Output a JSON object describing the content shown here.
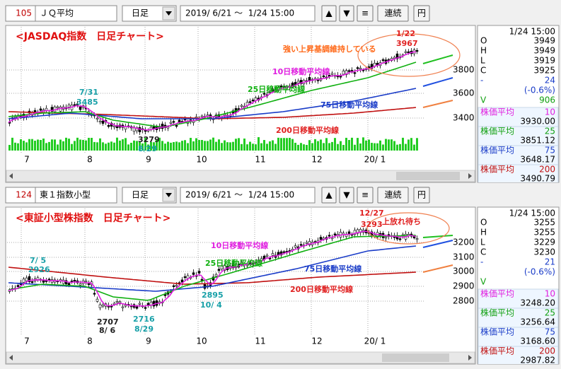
{
  "panels": [
    {
      "code": "105",
      "name": "ＪＱ平均",
      "period": "日足",
      "range": "2019/ 6/21 ～  1/24 15:00",
      "buttons": [
        "▲",
        "▼",
        "≡",
        "連続",
        "円"
      ],
      "title": "<JASDAQ指数　日足チャート>",
      "yticks": [
        "3800",
        "3600",
        "3400"
      ],
      "xlabels": [
        "7",
        "8",
        "9",
        "10",
        "11",
        "12",
        "20/ 1"
      ],
      "annotations": [
        {
          "text": "強い上昇基調維持している",
          "color": "#ff6a1a"
        },
        {
          "text": "1/22",
          "color": "#e02020"
        },
        {
          "text": "3967",
          "color": "#e02020"
        },
        {
          "text": "10日移動平均線",
          "color": "#e020e0"
        },
        {
          "text": "25日移動平均線",
          "color": "#10b010"
        },
        {
          "text": "75日移動平均線",
          "color": "#1a3cc8"
        },
        {
          "text": "200日移動平均線",
          "color": "#e02020"
        },
        {
          "text": "7/31",
          "color": "#18a0a8"
        },
        {
          "text": "3485",
          "color": "#18a0a8"
        },
        {
          "text": "3279",
          "color": "#202020"
        },
        {
          "text": "8/29",
          "color": "#18a0a8"
        }
      ],
      "info": {
        "time": "1/24 15:00",
        "ohlc": [
          {
            "k": "O",
            "v": "3949"
          },
          {
            "k": "H",
            "v": "3949"
          },
          {
            "k": "L",
            "v": "3919"
          },
          {
            "k": "C",
            "v": "3925"
          }
        ],
        "change": {
          "k": "-",
          "v": "24"
        },
        "pct": "(-0.6%)",
        "volume": {
          "k": "V",
          "v": "906"
        }
      },
      "ma": [
        {
          "label": "株価平均",
          "period": "10",
          "value": "3930.00",
          "color": "#e020e0"
        },
        {
          "label": "株価平均",
          "period": "25",
          "value": "3851.12",
          "color": "#10a010"
        },
        {
          "label": "株価平均",
          "period": "75",
          "value": "3648.17",
          "color": "#1a3cc8"
        },
        {
          "label": "株価平均",
          "period": "200",
          "value": "3490.79",
          "color": "#c01010"
        }
      ]
    },
    {
      "code": "124",
      "name": "東１指数小型",
      "period": "日足",
      "range": "2019/ 6/21 ～  1/24 15:00",
      "buttons": [
        "▲",
        "▼",
        "≡",
        "連続",
        "円"
      ],
      "title": "<東証小型株指数　日足チャート>",
      "yticks": [
        "3200",
        "3100",
        "3000",
        "2900",
        "2800"
      ],
      "xlabels": [
        "7",
        "8",
        "9",
        "10",
        "11",
        "12",
        "20/ 1"
      ],
      "annotations": [
        {
          "text": "上放れ待ち",
          "color": "#e02020"
        },
        {
          "text": "12/27",
          "color": "#e02020"
        },
        {
          "text": "3293",
          "color": "#e02020"
        },
        {
          "text": "10日移動平均線",
          "color": "#e020e0"
        },
        {
          "text": "25日移動平均線",
          "color": "#10b010"
        },
        {
          "text": "75日移動平均線",
          "color": "#1a3cc8"
        },
        {
          "text": "200日移動平均線",
          "color": "#e02020"
        },
        {
          "text": "7/ 5",
          "color": "#18a0a8"
        },
        {
          "text": "2926",
          "color": "#18a0a8"
        },
        {
          "text": "2707",
          "color": "#202020"
        },
        {
          "text": "8/ 6",
          "color": "#202020"
        },
        {
          "text": "2716",
          "color": "#18a0a8"
        },
        {
          "text": "8/29",
          "color": "#18a0a8"
        },
        {
          "text": "2895",
          "color": "#18a0a8"
        },
        {
          "text": "10/ 4",
          "color": "#18a0a8"
        }
      ],
      "info": {
        "time": "1/24 15:00",
        "ohlc": [
          {
            "k": "O",
            "v": "3255"
          },
          {
            "k": "H",
            "v": "3255"
          },
          {
            "k": "L",
            "v": "3229"
          },
          {
            "k": "C",
            "v": "3230"
          }
        ],
        "change": {
          "k": "-",
          "v": "21"
        },
        "pct": "(-0.6%)",
        "volume": {
          "k": "V"
        }
      },
      "ma": [
        {
          "label": "株価平均",
          "period": "10",
          "value": "3248.20",
          "color": "#e020e0"
        },
        {
          "label": "株価平均",
          "period": "25",
          "value": "3256.64",
          "color": "#10a010"
        },
        {
          "label": "株価平均",
          "period": "75",
          "value": "3168.60",
          "color": "#1a3cc8"
        },
        {
          "label": "株価平均",
          "period": "200",
          "value": "2987.82",
          "color": "#c01010"
        }
      ]
    }
  ]
}
